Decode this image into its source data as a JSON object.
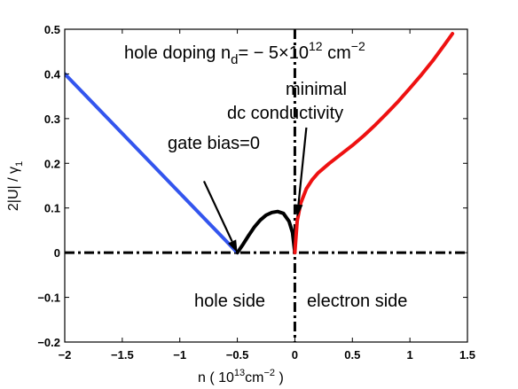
{
  "chart_data": {
    "type": "line",
    "title": "",
    "xlabel": "n  ( 10",
    "xlabel_sup": "13",
    "xlabel_unit": "cm",
    "xlabel_unit_sup": "−2",
    "xlabel_close": " )",
    "ylabel": "2|U| / γ",
    "ylabel_sub": "1",
    "xlim": [
      -2,
      1.5
    ],
    "ylim": [
      -0.2,
      0.5
    ],
    "x_ticks": [
      -2,
      -1.5,
      -1,
      -0.5,
      0,
      0.5,
      1,
      1.5
    ],
    "x_tick_labels": [
      "−2",
      "−1.5",
      "−1",
      "−0.5",
      "0",
      "0.5",
      "1",
      "1.5"
    ],
    "y_ticks": [
      -0.2,
      -0.1,
      0,
      0.1,
      0.2,
      0.3,
      0.4,
      0.5
    ],
    "y_tick_labels": [
      "−0.2",
      "−0.1",
      "0",
      "0.1",
      "0.2",
      "0.3",
      "0.4",
      "0.5"
    ],
    "grid": false,
    "series": [
      {
        "color": "#3355ee",
        "style": "solid",
        "x": [
          -2.0,
          -0.5
        ],
        "y": [
          0.4,
          0.0
        ]
      },
      {
        "color": "#000000",
        "style": "solid",
        "x": [
          -0.5,
          -0.45,
          -0.4,
          -0.35,
          -0.3,
          -0.25,
          -0.2,
          -0.15,
          -0.1,
          -0.05,
          -0.02,
          0.0
        ],
        "y": [
          0.0,
          0.019,
          0.039,
          0.058,
          0.073,
          0.084,
          0.09,
          0.092,
          0.088,
          0.07,
          0.045,
          0.0
        ]
      },
      {
        "color": "#ee1111",
        "style": "solid",
        "x": [
          0.0,
          0.02,
          0.05,
          0.1,
          0.15,
          0.2,
          0.3,
          0.4,
          0.5,
          0.6,
          0.7,
          0.8,
          0.9,
          1.0,
          1.1,
          1.2,
          1.3,
          1.37
        ],
        "y": [
          0.0,
          0.07,
          0.11,
          0.143,
          0.163,
          0.178,
          0.2,
          0.22,
          0.24,
          0.262,
          0.286,
          0.312,
          0.339,
          0.368,
          0.398,
          0.43,
          0.465,
          0.49
        ]
      }
    ],
    "reference_lines": [
      {
        "orientation": "horizontal",
        "value": 0,
        "color": "#000000",
        "style": "dash-dot"
      },
      {
        "orientation": "vertical",
        "value": 0,
        "color": "#000000",
        "style": "dash-dot"
      }
    ],
    "annotations": {
      "doping_prefix": "hole doping n",
      "doping_sub": "d",
      "doping_eq": "= − 5×10",
      "doping_exp": "12",
      "doping_unit": " cm",
      "doping_unit_exp": "−2",
      "minimal": "minimal",
      "dc": "dc conductivity",
      "gate": "gate bias=0",
      "hole_side": "hole side",
      "electron_side": "electron side"
    },
    "arrows": [
      {
        "from": [
          -0.79,
          0.16
        ],
        "to": [
          -0.5,
          0.0
        ]
      },
      {
        "from": [
          0.1,
          0.28
        ],
        "to": [
          0.02,
          0.08
        ]
      }
    ]
  }
}
